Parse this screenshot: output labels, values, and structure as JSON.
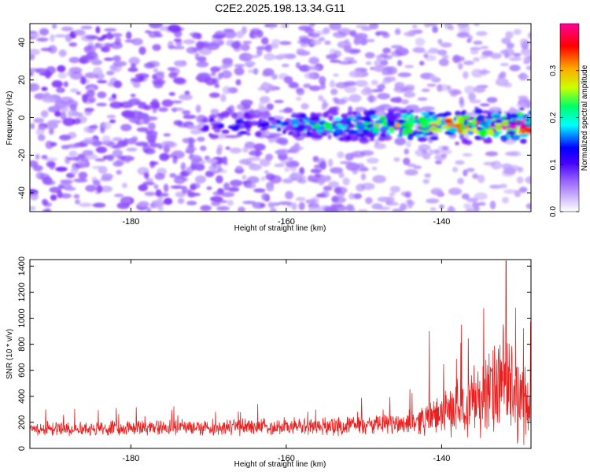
{
  "title": "C2E2.2025.198.13.34.G11",
  "chart_data": [
    {
      "type": "heatmap",
      "xlabel": "Height of straight line (km)",
      "ylabel": "Frequency (Hz)",
      "xlim": [
        -193,
        -128.5
      ],
      "ylim": [
        -50,
        50
      ],
      "x_ticks": [
        -180,
        -160,
        -140
      ],
      "y_ticks": [
        -40,
        -20,
        0,
        20,
        40
      ],
      "x_tick_labels": [
        "-180",
        "-160",
        "-140"
      ],
      "y_tick_labels": [
        "-40",
        "-20",
        "0",
        "20",
        "40"
      ],
      "colorbar": {
        "label": "Normalized spectral amplitude",
        "range": [
          0,
          0.4
        ],
        "ticks": [
          0.0,
          0.1,
          0.2,
          0.3
        ],
        "tick_labels": [
          "0.0",
          "0.1",
          "0.2",
          "0.3"
        ],
        "colormap": [
          "#ffffff",
          "#9966ff",
          "#6600ff",
          "#0000ff",
          "#00ffff",
          "#00ff00",
          "#ffff00",
          "#ff0000",
          "#ff00cc"
        ]
      },
      "features": [
        {
          "description": "Background speckle",
          "x_range": [
            -193,
            -128.5
          ],
          "y_range": [
            -50,
            50
          ],
          "amplitude": 0.05
        },
        {
          "x_range": [
            -171,
            -128.5
          ],
          "y_center": -4,
          "amplitude_start": 0.1,
          "amplitude_end": 0.38
        }
      ]
    },
    {
      "type": "line",
      "xlabel": "Height of straight line (km)",
      "ylabel": "SNR (10 * v/v)",
      "xlim": [
        -193,
        -128.5
      ],
      "ylim": [
        0,
        1450
      ],
      "x_ticks": [
        -180,
        -160,
        -140
      ],
      "y_ticks": [
        0,
        200,
        400,
        600,
        800,
        1000,
        1200,
        1400
      ],
      "x_tick_labels": [
        "-180",
        "-160",
        "-140"
      ],
      "y_tick_labels": [
        "0",
        "200",
        "400",
        "600",
        "800",
        "1000",
        "1200",
        "1400"
      ],
      "series": [
        {
          "color": "#e8201f",
          "x_range": [
            -193,
            -128.5
          ],
          "envelope_x": [
            -193,
            -185,
            -175,
            -165,
            -155,
            -148,
            -144,
            -142,
            -140,
            -138,
            -136,
            -134,
            -132,
            -130.5,
            -129
          ],
          "envelope_mean": [
            150,
            155,
            160,
            165,
            170,
            180,
            200,
            230,
            260,
            320,
            380,
            420,
            480,
            430,
            320
          ],
          "envelope_spread": [
            60,
            65,
            70,
            75,
            80,
            90,
            110,
            140,
            180,
            250,
            320,
            400,
            520,
            450,
            300
          ],
          "peaks": [
            {
              "x": -131.7,
              "y": 1440
            },
            {
              "x": -141.6,
              "y": 900
            },
            {
              "x": -130.5,
              "y": 1080
            }
          ]
        }
      ]
    }
  ]
}
